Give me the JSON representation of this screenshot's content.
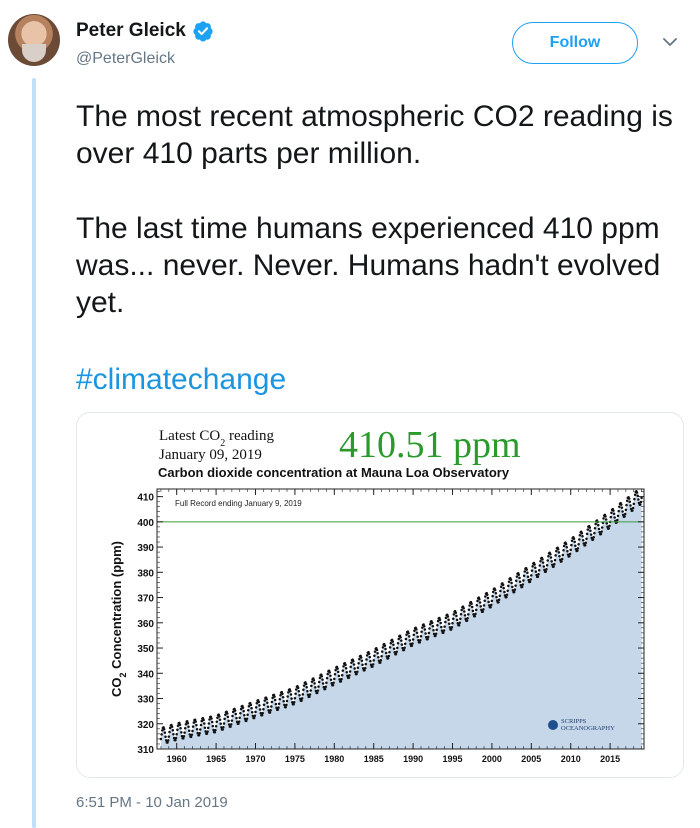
{
  "author": {
    "name": "Peter Gleick",
    "handle": "@PeterGleick",
    "verified": true,
    "avatar_icon": "user-avatar"
  },
  "follow_button": {
    "label": "Follow"
  },
  "menu_icon": "chevron-down-icon",
  "tweet": {
    "paragraph_1": "The most recent atmospheric CO2 reading is over 410 parts per million.",
    "paragraph_2": "The last time humans experienced 410 ppm was... never. Never. Humans hadn't evolved yet.",
    "hashtag": "#climatechange"
  },
  "timestamp": "6:51 PM - 10 Jan 2019",
  "colors": {
    "accent": "#1da1f2",
    "link": "#1b95e0",
    "thread_line": "#bfe0fa",
    "ppm_green": "#2a9a2a",
    "fill_blue": "#c6d7ea"
  },
  "chart_data": {
    "type": "line",
    "header": {
      "latest_label_pre": "Latest CO",
      "latest_label_sub": "2",
      "latest_label_post": " reading",
      "date": "January 09, 2019",
      "big_value": "410.51 ppm"
    },
    "title": "Carbon dioxide concentration at Mauna Loa Observatory",
    "inset_label": "Full Record ending January 9, 2019",
    "ylabel_pre": "CO",
    "ylabel_sub": "2",
    "ylabel_post": " Concentration (ppm)",
    "xlabel": "",
    "xlim": [
      1957.5,
      2019.3
    ],
    "ylim": [
      310,
      413
    ],
    "x_ticks": [
      1960,
      1965,
      1970,
      1975,
      1980,
      1985,
      1990,
      1995,
      2000,
      2005,
      2010,
      2015
    ],
    "y_ticks": [
      310,
      320,
      330,
      340,
      350,
      360,
      370,
      380,
      390,
      400,
      410
    ],
    "reference_line": 400,
    "grid": false,
    "logo_text": [
      "SCRIPPS",
      "OCEANOGRAPHY"
    ],
    "series": [
      {
        "x": [
          1958,
          1960,
          1965,
          1970,
          1975,
          1980,
          1985,
          1990,
          1995,
          2000,
          2005,
          2010,
          2015,
          2019
        ],
        "values": [
          315.0,
          316.9,
          320.0,
          325.7,
          331.1,
          338.8,
          346.1,
          354.4,
          360.8,
          369.7,
          379.8,
          389.9,
          401.0,
          410.5
        ],
        "seasonal_amplitude": 3.3
      }
    ]
  }
}
